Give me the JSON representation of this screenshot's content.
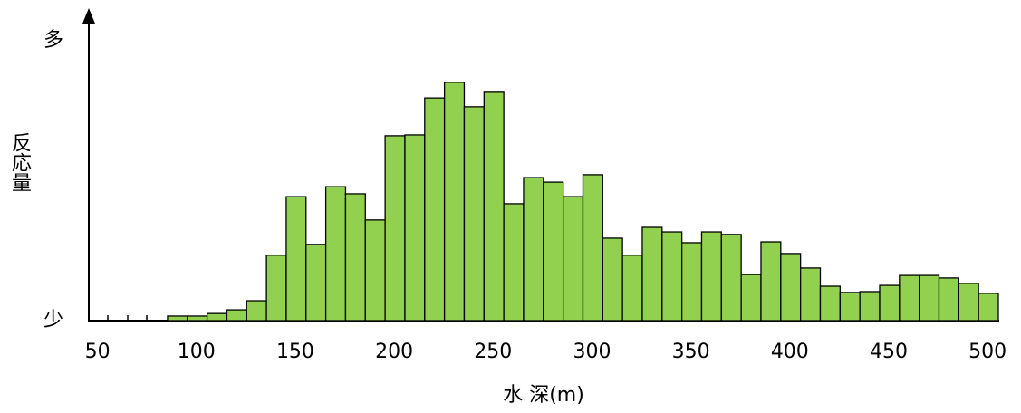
{
  "chart_data": {
    "type": "histogram",
    "x_label": "水 深(m)",
    "y_label": "反応量",
    "y_high_label": "多",
    "y_low_label": "少",
    "bins": [
      90,
      100,
      110,
      120,
      130,
      140,
      150,
      160,
      170,
      180,
      190,
      200,
      210,
      220,
      230,
      240,
      250,
      260,
      270,
      280,
      290,
      300,
      310,
      320,
      330,
      340,
      350,
      360,
      370,
      380,
      390,
      400,
      410,
      420,
      430,
      440,
      450,
      460,
      470,
      480,
      490,
      500,
      510
    ],
    "values": [
      1.6,
      1.6,
      2.5,
      3.8,
      7,
      23,
      43.6,
      26.8,
      47.1,
      44.6,
      35.4,
      65,
      65.3,
      78.3,
      83.8,
      75.2,
      80.3,
      41.1,
      50.3,
      48.7,
      43.6,
      51.3,
      29,
      23,
      32.8,
      31.2,
      27.4,
      31.2,
      30.3,
      16.2,
      27.7,
      23.6,
      18.5,
      12.1,
      9.9,
      10.2,
      12.4,
      15.9,
      15.9,
      15,
      13.1,
      9.6
    ],
    "color": "#92d050",
    "xlim": [
      50,
      510
    ],
    "ylim": [
      0,
      100
    ],
    "xticks": [
      50,
      100,
      150,
      200,
      250,
      300,
      350,
      400,
      450,
      500
    ]
  }
}
